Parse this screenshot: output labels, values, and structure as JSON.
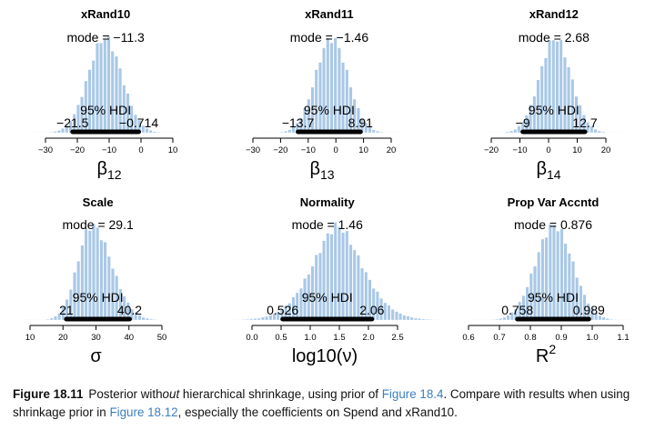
{
  "colors": {
    "bar": "#a9c8e6",
    "bar_edge": "#ffffff",
    "hdi": "#000000",
    "link": "#3b7fc0"
  },
  "chart_data": [
    {
      "type": "bar",
      "title": "xRand10",
      "xlabel_html": "β<tspan dy='5' font-size='13'>12</tspan>",
      "xlabel_parts": [
        "β",
        "12"
      ],
      "mode_label": "mode = −11.3",
      "hdi_label": "95% HDI",
      "hdi_low": -21.5,
      "hdi_high": -0.714,
      "hdi_low_label": "−21.5",
      "hdi_high_label": "−0.714",
      "mode": -11.3,
      "sd": 5.3,
      "shape": "normal",
      "xlim": [
        -30,
        10
      ],
      "ticks": [
        -30,
        -20,
        -10,
        0,
        10
      ],
      "tick_labels": [
        "−30",
        "−20",
        "−10",
        "0",
        "10"
      ],
      "grid": false
    },
    {
      "type": "bar",
      "title": "xRand11",
      "xlabel_parts": [
        "β",
        "13"
      ],
      "mode_label": "mode = −1.46",
      "hdi_label": "95% HDI",
      "hdi_low": -13.7,
      "hdi_high": 8.91,
      "hdi_low_label": "−13.7",
      "hdi_high_label": "8.91",
      "mode": -1.46,
      "sd": 5.8,
      "shape": "normal",
      "xlim": [
        -30,
        20
      ],
      "ticks": [
        -30,
        -20,
        -10,
        0,
        10,
        20
      ],
      "tick_labels": [
        "−30",
        "−20",
        "−10",
        "0",
        "10",
        "20"
      ],
      "grid": false
    },
    {
      "type": "bar",
      "title": "xRand12",
      "xlabel_parts": [
        "β",
        "14"
      ],
      "mode_label": "mode = 2.68",
      "hdi_label": "95% HDI",
      "hdi_low": -9,
      "hdi_high": 12.7,
      "hdi_low_label": "−9",
      "hdi_high_label": "12.7",
      "mode": 2.68,
      "sd": 5.5,
      "shape": "normal",
      "xlim": [
        -20,
        20
      ],
      "ticks": [
        -20,
        -10,
        0,
        10,
        20
      ],
      "tick_labels": [
        "−20",
        "−10",
        "0",
        "10",
        "20"
      ],
      "grid": false
    },
    {
      "type": "bar",
      "title": "Scale",
      "xlabel_parts": [
        "σ",
        ""
      ],
      "mode_label": "mode = 29.1",
      "hdi_label": "95% HDI",
      "hdi_low": 21,
      "hdi_high": 40.2,
      "hdi_low_label": "21",
      "hdi_high_label": "40.2",
      "mode": 29.1,
      "sd": 4.8,
      "shape": "skew",
      "xlim": [
        10,
        50
      ],
      "ticks": [
        10,
        20,
        30,
        40,
        50
      ],
      "tick_labels": [
        "10",
        "20",
        "30",
        "40",
        "50"
      ],
      "grid": false
    },
    {
      "type": "bar",
      "title": "Normality",
      "xlabel_parts": [
        "log10(ν)",
        ""
      ],
      "mode_label": "mode = 1.46",
      "hdi_label": "95% HDI",
      "hdi_low": 0.526,
      "hdi_high": 2.06,
      "hdi_low_label": "0.526",
      "hdi_high_label": "2.06",
      "mode": 1.46,
      "sd": 0.4,
      "shape": "wide",
      "xlim": [
        0,
        2.5
      ],
      "ticks": [
        0,
        0.5,
        1,
        1.5,
        2,
        2.5
      ],
      "tick_labels": [
        "0.0",
        "0.5",
        "1.0",
        "1.5",
        "2.0",
        "2.5"
      ],
      "grid": false
    },
    {
      "type": "bar",
      "title": "Prop Var Accntd",
      "xlabel_parts": [
        "R",
        "2"
      ],
      "mode_label": "mode = 0.876",
      "hdi_label": "95% HDI",
      "hdi_low": 0.758,
      "hdi_high": 0.989,
      "hdi_low_label": "0.758",
      "hdi_high_label": "0.989",
      "mode": 0.876,
      "sd": 0.06,
      "shape": "normal",
      "xlim": [
        0.6,
        1.1
      ],
      "ticks": [
        0.6,
        0.7,
        0.8,
        0.9,
        1.0,
        1.1
      ],
      "tick_labels": [
        "0.6",
        "0.7",
        "0.8",
        "0.9",
        "1.0",
        "1.1"
      ],
      "grid": false
    }
  ],
  "caption": {
    "label": "Figure 18.11",
    "text_1": "Posterior with",
    "text_italic": "out",
    "text_2": " hierarchical shrinkage, using prior of ",
    "link_1": "Figure 18.4",
    "text_3": ". Compare with results when using shrinkage prior in ",
    "link_2": "Figure 18.12",
    "text_4": ", especially the coefficients on Spend and xRand10."
  }
}
